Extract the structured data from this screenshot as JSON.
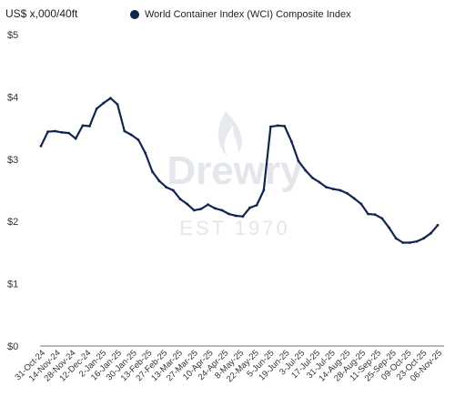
{
  "unit_label": "US$ x,000/40ft",
  "watermark": {
    "brand": "Drewry",
    "tagline": "EST 1970"
  },
  "colors": {
    "series": "#10264d",
    "axis": "#666666",
    "watermark": "#d9dde3"
  },
  "chart_data": {
    "type": "line",
    "title": "",
    "xlabel": "",
    "ylabel": "US$ x,000/40ft",
    "ylim": [
      0,
      5
    ],
    "y_ticks": [
      0,
      1,
      2,
      3,
      4,
      5
    ],
    "y_tick_labels": [
      "$0",
      "$1",
      "$2",
      "$3",
      "$4",
      "$5"
    ],
    "x_tick_labels": [
      "31-Oct-24",
      "14-Nov-24",
      "28-Nov-24",
      "12-Dec-24",
      "2-Jan-25",
      "16-Jan-25",
      "30-Jan-25",
      "13-Feb-25",
      "27-Feb-25",
      "13-Mar-25",
      "27-Mar-25",
      "10-Apr-25",
      "24-Apr-25",
      "8-May-25",
      "22-May-25",
      "5-Jun-25",
      "19-Jun-25",
      "3-Jul-25",
      "17-Jul-25",
      "31-Jul-25",
      "14-Aug-25",
      "28-Aug-25",
      "11-Sep-25",
      "25-Sep-25",
      "09-Oct-25",
      "23-Oct-25",
      "06-Nov-25"
    ],
    "grid": false,
    "legend_position": "top",
    "series": [
      {
        "name": "World Container Index (WCI) Composite Index",
        "values": [
          3.21,
          3.44,
          3.45,
          3.43,
          3.42,
          3.33,
          3.54,
          3.53,
          3.81,
          3.9,
          3.98,
          3.88,
          3.45,
          3.39,
          3.31,
          3.1,
          2.8,
          2.65,
          2.55,
          2.5,
          2.36,
          2.28,
          2.18,
          2.2,
          2.27,
          2.21,
          2.18,
          2.12,
          2.09,
          2.08,
          2.22,
          2.26,
          2.5,
          3.52,
          3.54,
          3.53,
          3.28,
          2.97,
          2.82,
          2.7,
          2.63,
          2.55,
          2.52,
          2.5,
          2.45,
          2.37,
          2.28,
          2.12,
          2.11,
          2.05,
          1.9,
          1.73,
          1.66,
          1.66,
          1.68,
          1.73,
          1.81,
          1.94
        ]
      }
    ]
  }
}
